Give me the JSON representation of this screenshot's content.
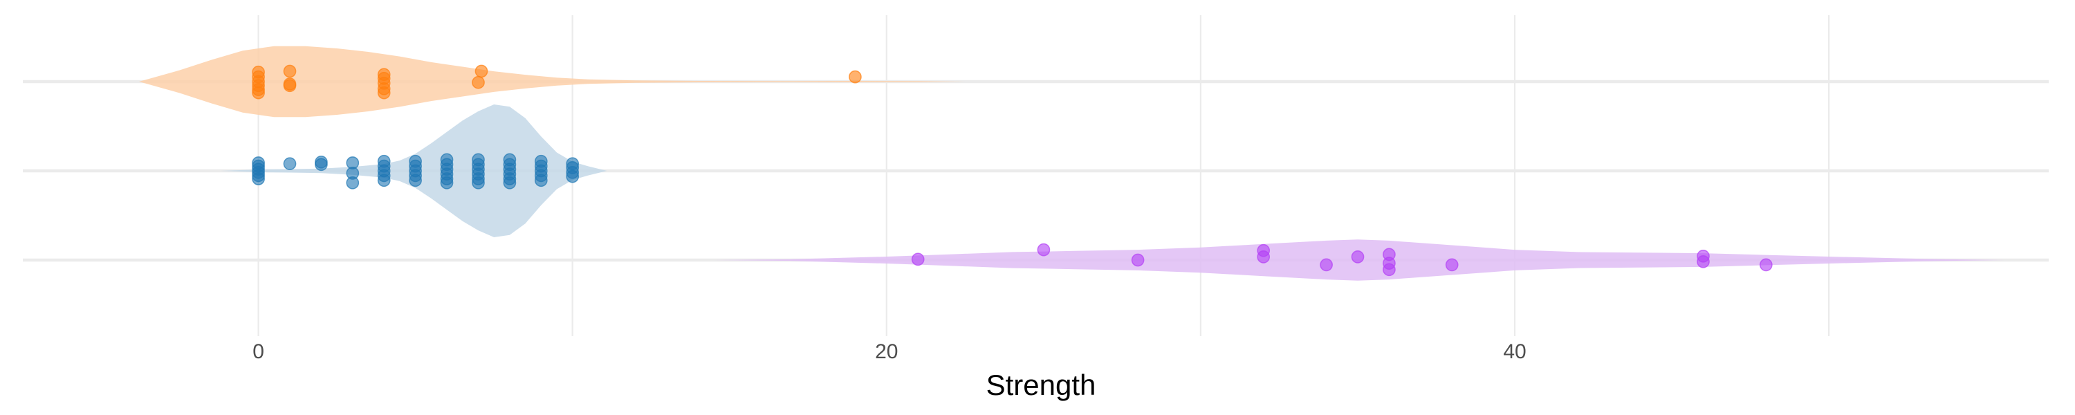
{
  "chart_data": {
    "type": "violin",
    "title": "",
    "xlabel": "Strength",
    "ylabel": "",
    "xlim": [
      -7.5,
      57
    ],
    "x_ticks": [
      0,
      20,
      40
    ],
    "x_tick_labels": [
      "0",
      "20",
      "40"
    ],
    "x_minor_gridlines": [
      10,
      30,
      50
    ],
    "grid": true,
    "legend": "none",
    "series": [
      {
        "color": "#ff7f0e",
        "violin_color": "#fdd0a9",
        "points": [
          [
            0,
            0.12
          ],
          [
            0,
            0.06
          ],
          [
            0,
            0.0
          ],
          [
            0,
            -0.05
          ],
          [
            0,
            -0.1
          ],
          [
            0,
            -0.14
          ],
          [
            1,
            0.13
          ],
          [
            1,
            -0.03
          ],
          [
            1,
            -0.05
          ],
          [
            4,
            0.09
          ],
          [
            4,
            0.04
          ],
          [
            4,
            -0.02
          ],
          [
            4,
            -0.09
          ],
          [
            4,
            -0.14
          ],
          [
            7,
            -0.01
          ],
          [
            7.1,
            0.13
          ],
          [
            19,
            0.06
          ]
        ],
        "density": [
          [
            -3.8,
            0
          ],
          [
            -2.5,
            0.1
          ],
          [
            -1.5,
            0.19
          ],
          [
            -0.5,
            0.27
          ],
          [
            0.5,
            0.31
          ],
          [
            1.5,
            0.31
          ],
          [
            2.5,
            0.29
          ],
          [
            3.5,
            0.26
          ],
          [
            4.5,
            0.22
          ],
          [
            5.5,
            0.17
          ],
          [
            6.5,
            0.13
          ],
          [
            7.5,
            0.09
          ],
          [
            8.5,
            0.06
          ],
          [
            9.5,
            0.035
          ],
          [
            10.5,
            0.02
          ],
          [
            12,
            0.01
          ],
          [
            14,
            0.006
          ],
          [
            17,
            0.005
          ],
          [
            19,
            0.006
          ],
          [
            21,
            0.004
          ],
          [
            22.5,
            0
          ]
        ]
      },
      {
        "color": "#1f77b4",
        "violin_color": "#c4d8e8",
        "points": [
          [
            0,
            0.1
          ],
          [
            0,
            0.06
          ],
          [
            0,
            0.02
          ],
          [
            0,
            -0.02
          ],
          [
            0,
            -0.06
          ],
          [
            0,
            -0.1
          ],
          [
            1,
            0.09
          ],
          [
            2,
            0.11
          ],
          [
            2,
            0.08
          ],
          [
            3,
            0.1
          ],
          [
            3,
            -0.03
          ],
          [
            3,
            -0.15
          ],
          [
            4,
            0.12
          ],
          [
            4,
            0.06
          ],
          [
            4,
            0.0
          ],
          [
            4,
            -0.06
          ],
          [
            4,
            -0.12
          ],
          [
            5,
            0.12
          ],
          [
            5,
            0.06
          ],
          [
            5,
            0.0
          ],
          [
            5,
            -0.06
          ],
          [
            5,
            -0.12
          ],
          [
            6,
            0.14
          ],
          [
            6,
            0.08
          ],
          [
            6,
            0.02
          ],
          [
            6,
            -0.04
          ],
          [
            6,
            -0.1
          ],
          [
            6,
            -0.15
          ],
          [
            7,
            0.14
          ],
          [
            7,
            0.08
          ],
          [
            7,
            0.02
          ],
          [
            7,
            -0.04
          ],
          [
            7,
            -0.1
          ],
          [
            7,
            -0.15
          ],
          [
            8,
            0.14
          ],
          [
            8,
            0.08
          ],
          [
            8,
            0.02
          ],
          [
            8,
            -0.04
          ],
          [
            8,
            -0.1
          ],
          [
            8,
            -0.15
          ],
          [
            9,
            0.12
          ],
          [
            9,
            0.06
          ],
          [
            9,
            0.0
          ],
          [
            9,
            -0.06
          ],
          [
            9,
            -0.12
          ],
          [
            10,
            0.09
          ],
          [
            10,
            0.04
          ],
          [
            10,
            -0.02
          ],
          [
            10,
            -0.07
          ]
        ],
        "density": [
          [
            -1.2,
            0
          ],
          [
            0,
            0.012
          ],
          [
            1,
            0.015
          ],
          [
            2,
            0.02
          ],
          [
            3,
            0.035
          ],
          [
            4,
            0.06
          ],
          [
            4.5,
            0.09
          ],
          [
            5,
            0.15
          ],
          [
            5.5,
            0.24
          ],
          [
            6,
            0.34
          ],
          [
            6.5,
            0.44
          ],
          [
            7,
            0.52
          ],
          [
            7.5,
            0.58
          ],
          [
            8,
            0.56
          ],
          [
            8.5,
            0.46
          ],
          [
            9,
            0.3
          ],
          [
            9.5,
            0.16
          ],
          [
            10,
            0.08
          ],
          [
            10.5,
            0.04
          ],
          [
            11.1,
            0
          ]
        ]
      },
      {
        "color": "#b340f5",
        "violin_color": "#dfbdf5",
        "points": [
          [
            21,
            0.01
          ],
          [
            25,
            0.13
          ],
          [
            28,
            0.0
          ],
          [
            32,
            0.12
          ],
          [
            32,
            0.04
          ],
          [
            34,
            -0.06
          ],
          [
            35,
            0.04
          ],
          [
            36,
            0.07
          ],
          [
            36,
            -0.04
          ],
          [
            36,
            -0.12
          ],
          [
            38,
            -0.06
          ],
          [
            46,
            0.05
          ],
          [
            46,
            -0.02
          ],
          [
            48,
            -0.06
          ]
        ],
        "density": [
          [
            14.5,
            0
          ],
          [
            17,
            0.007
          ],
          [
            20,
            0.03
          ],
          [
            22,
            0.05
          ],
          [
            24,
            0.07
          ],
          [
            26,
            0.08
          ],
          [
            28,
            0.09
          ],
          [
            30,
            0.11
          ],
          [
            32,
            0.14
          ],
          [
            34,
            0.17
          ],
          [
            35,
            0.18
          ],
          [
            36,
            0.17
          ],
          [
            38,
            0.13
          ],
          [
            40,
            0.09
          ],
          [
            42,
            0.07
          ],
          [
            44,
            0.065
          ],
          [
            46,
            0.06
          ],
          [
            48,
            0.045
          ],
          [
            50,
            0.03
          ],
          [
            53,
            0.01
          ],
          [
            55.6,
            0
          ]
        ]
      }
    ]
  }
}
